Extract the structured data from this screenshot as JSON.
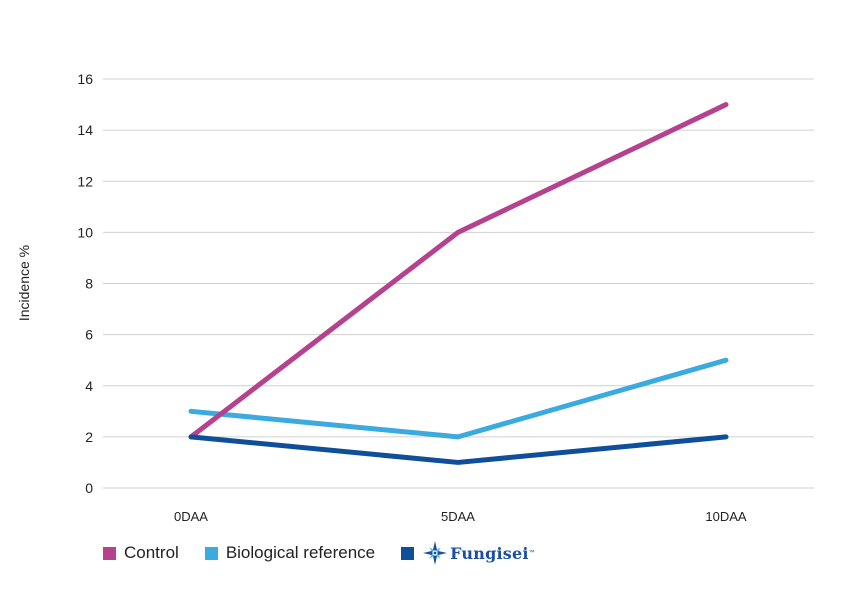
{
  "chart_data": {
    "type": "line",
    "categories": [
      "0DAA",
      "5DAA",
      "10DAA"
    ],
    "series": [
      {
        "name": "Control",
        "values": [
          2,
          10,
          15
        ],
        "color": "#b5418f"
      },
      {
        "name": "Biological reference",
        "values": [
          3,
          2,
          5
        ],
        "color": "#3aaadf"
      },
      {
        "name": "Fungisei",
        "values": [
          2,
          1,
          2
        ],
        "color": "#0f4f99"
      }
    ],
    "ylabel": "Incidence %",
    "ylim": [
      0,
      16
    ],
    "yticks": [
      "0",
      "2",
      "4",
      "6",
      "8",
      "10",
      "12",
      "14",
      "16"
    ],
    "grid": true,
    "legend": "bottom-left"
  },
  "legend": {
    "control_label": "Control",
    "bio_label": "Biological reference",
    "logo_text": "Fungisei",
    "logo_tm": "™",
    "logo_icon": "star-burst-icon"
  }
}
